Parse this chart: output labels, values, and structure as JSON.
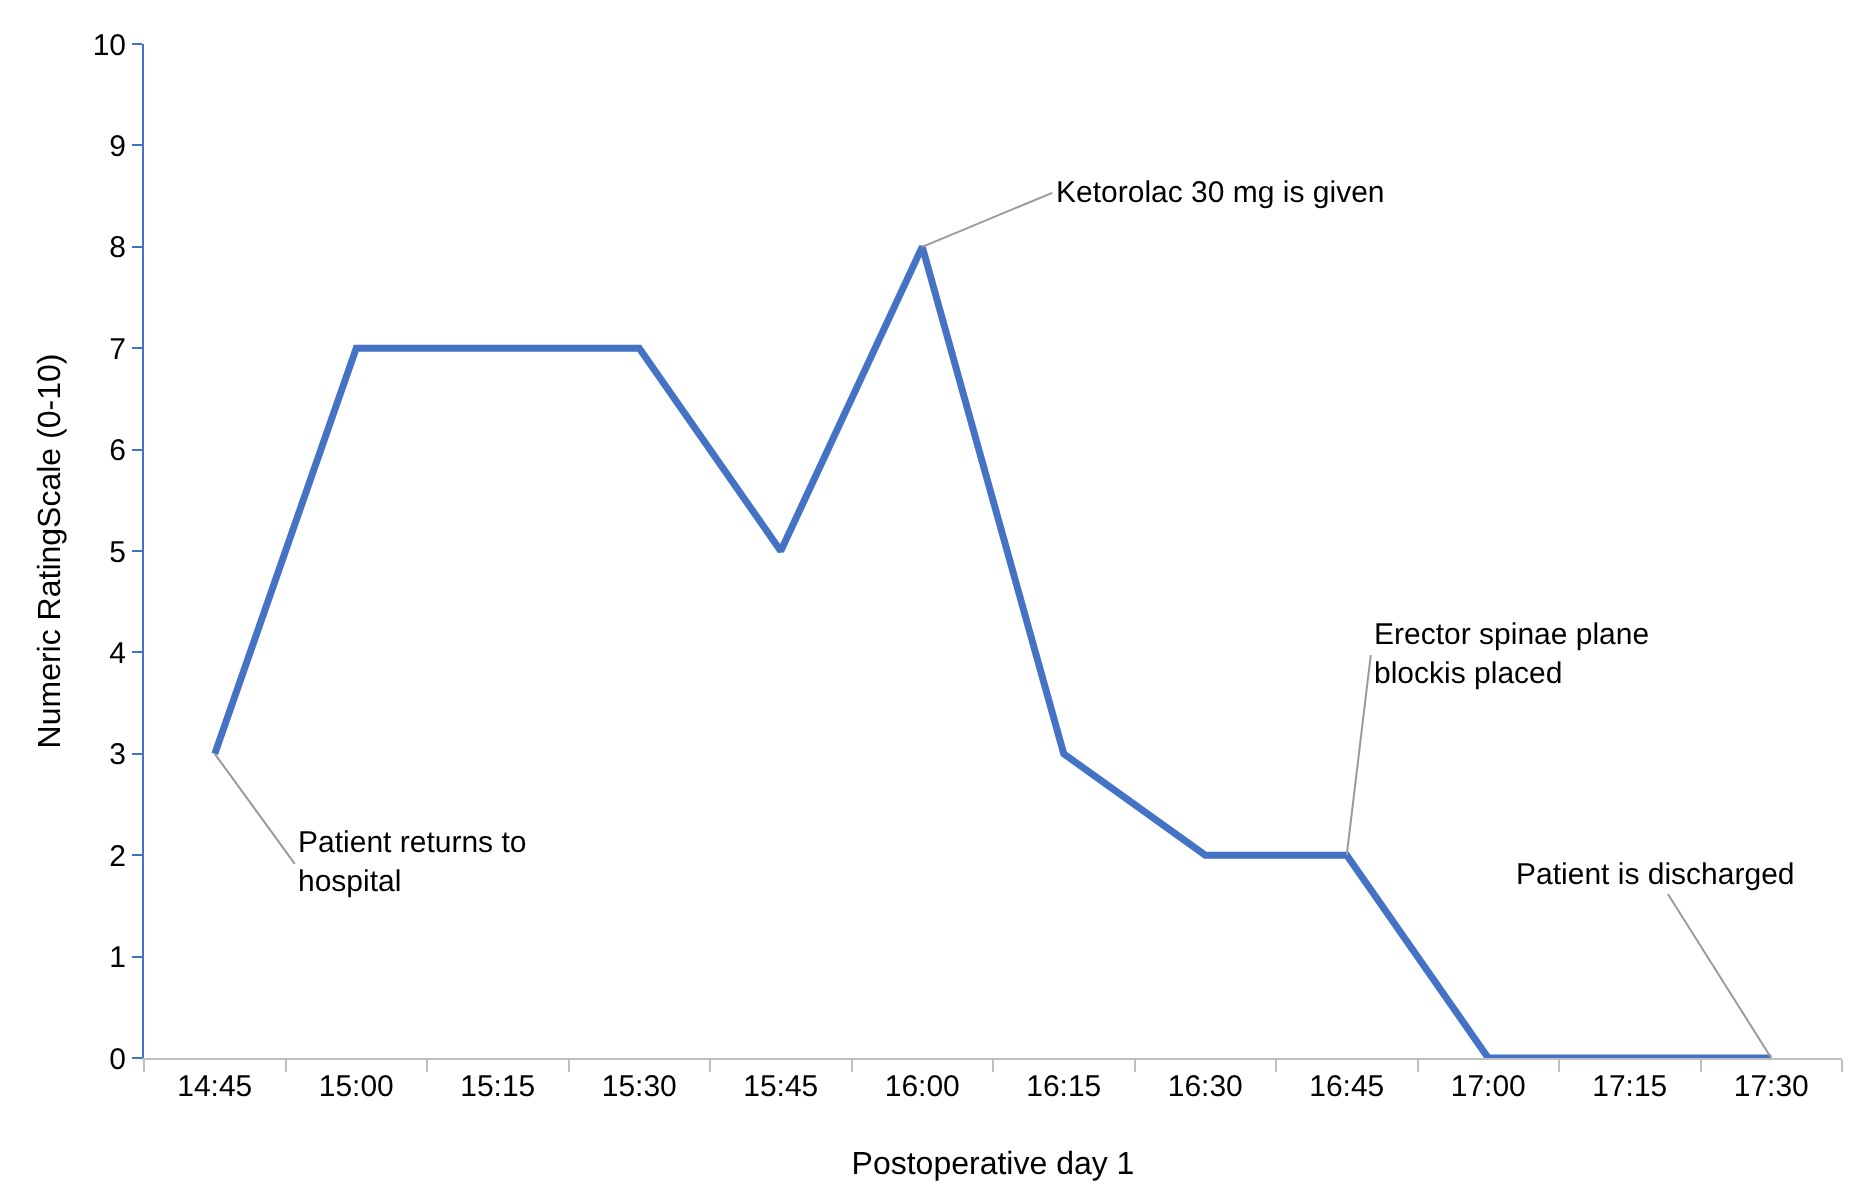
{
  "chart_data": {
    "type": "line",
    "xlabel": "Postoperative day 1",
    "ylabel": "Numeric RatingScale (0-10)",
    "categories": [
      "14:45",
      "15:00",
      "15:15",
      "15:30",
      "15:45",
      "16:00",
      "16:15",
      "16:30",
      "16:45",
      "17:00",
      "17:15",
      "17:30"
    ],
    "series": [
      {
        "color": "#4472c4",
        "values": [
          3,
          7,
          7,
          7,
          5,
          8,
          3,
          2,
          2,
          0,
          0,
          0
        ]
      }
    ],
    "ylim": [
      0,
      10
    ],
    "yticks": [
      0,
      1,
      2,
      3,
      4,
      5,
      6,
      7,
      8,
      9,
      10
    ],
    "grid": false,
    "marker": "none",
    "line_style": "solid",
    "annotations": [
      {
        "text": "Patient returns to\nhospital",
        "x": "14:45",
        "y": 3
      },
      {
        "text": "Ketorolac 30 mg is given",
        "x": "16:00",
        "y": 8
      },
      {
        "text": "Erector spinae plane\nblockis placed",
        "x": "16:45",
        "y": 2
      },
      {
        "text": "Patient is discharged",
        "x": "17:30",
        "y": 0
      }
    ]
  }
}
